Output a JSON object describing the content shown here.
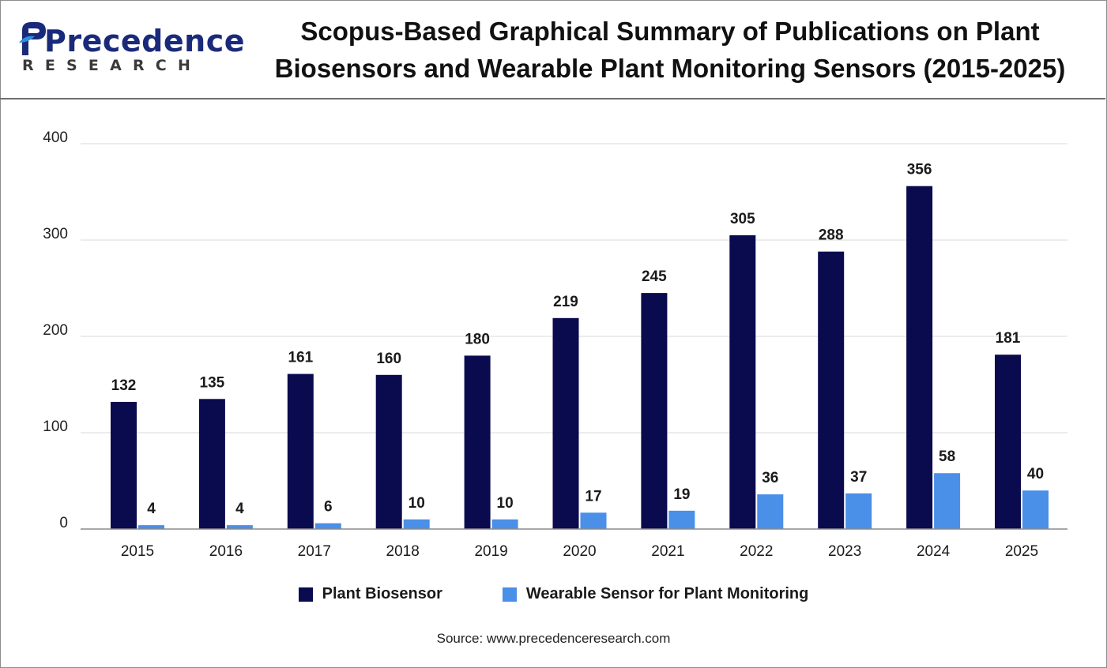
{
  "brand": {
    "name": "Precedence",
    "subname": "RESEARCH"
  },
  "chart_data": {
    "type": "bar",
    "title": "Scopus-Based Graphical Summary of Publications on Plant Biosensors and Wearable Plant Monitoring Sensors (2015-2025)",
    "title_lines": [
      "Scopus-Based Graphical Summary of Publications on Plant",
      "Biosensors and Wearable Plant Monitoring Sensors (2015-2025)"
    ],
    "xlabel": "",
    "ylabel": "",
    "categories": [
      "2015",
      "2016",
      "2017",
      "2018",
      "2019",
      "2020",
      "2021",
      "2022",
      "2023",
      "2024",
      "2025"
    ],
    "series": [
      {
        "name": "Plant Biosensor",
        "color": "#0a0a4e",
        "values": [
          132,
          135,
          161,
          160,
          180,
          219,
          245,
          305,
          288,
          356,
          181
        ]
      },
      {
        "name": "Wearable Sensor for Plant Monitoring",
        "color": "#4a8fe8",
        "values": [
          4,
          4,
          6,
          10,
          10,
          17,
          19,
          36,
          37,
          58,
          40
        ]
      }
    ],
    "ylim": [
      0,
      400
    ],
    "yticks": [
      0,
      100,
      200,
      300,
      400
    ],
    "grid": true,
    "legend_position": "bottom-center",
    "data_labels": true
  },
  "source": "Source: www.precedenceresearch.com"
}
